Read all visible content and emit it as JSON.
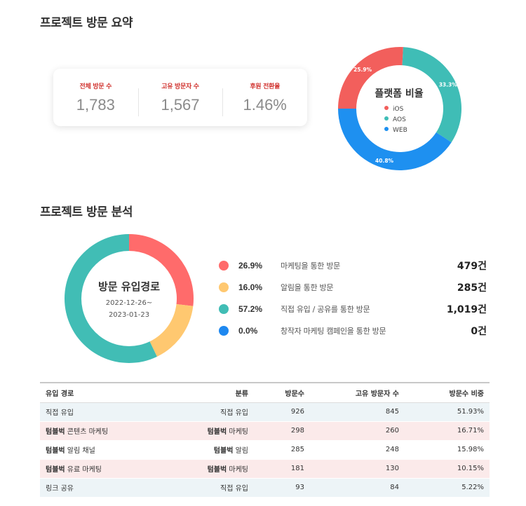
{
  "summary": {
    "title": "프로젝트 방문 요약",
    "stats": [
      {
        "label": "전체 방문 수",
        "value": "1,783"
      },
      {
        "label": "고유 방문자 수",
        "value": "1,567"
      },
      {
        "label": "후원 전환율",
        "value": "1.46%"
      }
    ]
  },
  "platform": {
    "title": "플랫폼 비율",
    "legend": [
      {
        "name": "iOS",
        "color": "#f25f5c"
      },
      {
        "name": "AOS",
        "color": "#3fbdb6"
      },
      {
        "name": "WEB",
        "color": "#1e90f0"
      }
    ],
    "slices": [
      {
        "name": "iOS",
        "pct_label": "25.9%",
        "value": 25.9,
        "color": "#f25f5c"
      },
      {
        "name": "AOS",
        "pct_label": "33.3%",
        "value": 33.3,
        "color": "#3fbdb6"
      },
      {
        "name": "WEB",
        "pct_label": "40.8%",
        "value": 40.8,
        "color": "#1e90f0"
      }
    ]
  },
  "analysis": {
    "title": "프로젝트 방문 분석",
    "donut_title": "방문 유입경로",
    "date_range_start": "2022-12-26~",
    "date_range_end": "2023-01-23",
    "items": [
      {
        "pct": "26.9%",
        "value": 26.9,
        "label": "마케팅을 통한 방문",
        "count": "479건",
        "color": "#ff6b6b"
      },
      {
        "pct": "16.0%",
        "value": 16.0,
        "label": "알림을 통한 방문",
        "count": "285건",
        "color": "#ffc870"
      },
      {
        "pct": "57.2%",
        "value": 57.2,
        "label": "직접 유입 / 공유를 통한 방문",
        "count": "1,019건",
        "color": "#41bdb5"
      },
      {
        "pct": "0.0%",
        "value": 0.0,
        "label": "창작자 마케팅 캠페인을 통한 방문",
        "count": "0건",
        "color": "#1e88f0"
      }
    ]
  },
  "table": {
    "headers": [
      "유입 경로",
      "분류",
      "방문수",
      "고유 방문자 수",
      "방문수 비중"
    ],
    "rows": [
      {
        "brand": "",
        "source": "직접 유입",
        "cat_brand": "",
        "category": "직접 유입",
        "visits": "926",
        "unique": "845",
        "share": "51.93%",
        "tone": "blue"
      },
      {
        "brand": "텀블벅",
        "source": " 콘텐츠 마케팅",
        "cat_brand": "텀블벅",
        "category": " 마케팅",
        "visits": "298",
        "unique": "260",
        "share": "16.71%",
        "tone": "pink"
      },
      {
        "brand": "텀블벅",
        "source": " 알림 채널",
        "cat_brand": "텀블벅",
        "category": " 알림",
        "visits": "285",
        "unique": "248",
        "share": "15.98%",
        "tone": "white"
      },
      {
        "brand": "텀블벅",
        "source": " 유료 마케팅",
        "cat_brand": "텀블벅",
        "category": " 마케팅",
        "visits": "181",
        "unique": "130",
        "share": "10.15%",
        "tone": "pink"
      },
      {
        "brand": "",
        "source": "링크 공유",
        "cat_brand": "",
        "category": "직접 유입",
        "visits": "93",
        "unique": "84",
        "share": "5.22%",
        "tone": "blue"
      }
    ]
  },
  "chart_data": [
    {
      "type": "pie",
      "title": "플랫폼 비율",
      "categories": [
        "iOS",
        "AOS",
        "WEB"
      ],
      "values": [
        25.9,
        33.3,
        40.8
      ]
    },
    {
      "type": "pie",
      "title": "방문 유입경로",
      "categories": [
        "마케팅을 통한 방문",
        "알림을 통한 방문",
        "직접 유입 / 공유를 통한 방문",
        "창작자 마케팅 캠페인을 통한 방문"
      ],
      "values": [
        26.9,
        16.0,
        57.2,
        0.0
      ]
    }
  ]
}
